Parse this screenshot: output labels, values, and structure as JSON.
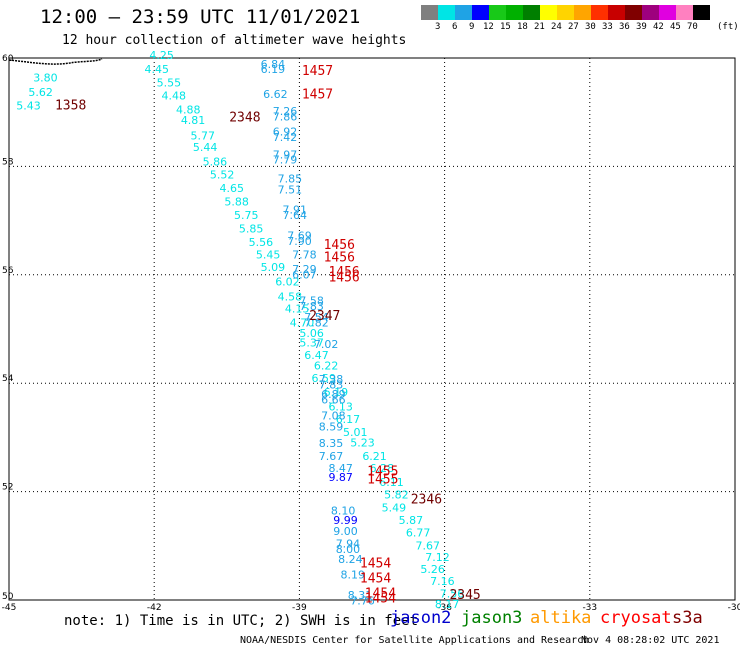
{
  "header": {
    "title": "12:00 — 23:59 UTC 11/01/2021",
    "subtitle": "12 hour collection of altimeter wave heights"
  },
  "colorbar": {
    "colors": [
      "#7f7f7f",
      "#00e5e5",
      "#1fa3e5",
      "#0000ff",
      "#18c918",
      "#00b000",
      "#007f00",
      "#ffff00",
      "#ffd400",
      "#ffa500",
      "#ff3000",
      "#c80000",
      "#800000",
      "#9e007e",
      "#e000e0",
      "#ff80c0",
      "#000000"
    ],
    "labels": [
      "3",
      "6",
      "9",
      "12",
      "15",
      "18",
      "21",
      "24",
      "27",
      "30",
      "33",
      "36",
      "39",
      "42",
      "45",
      "70"
    ],
    "unit": "(ft)"
  },
  "chart_data": {
    "type": "scatter",
    "title": "12:00 — 23:59 UTC 11/01/2021",
    "subtitle": "12 hour collection of altimeter wave heights",
    "xlim": [
      -45,
      -30
    ],
    "ylim": [
      50,
      60
    ],
    "x_ticks": [
      "-45",
      "-42",
      "-39",
      "-36",
      "-33",
      "-30"
    ],
    "y_ticks": [
      "50",
      "52",
      "54",
      "56",
      "58",
      "60"
    ],
    "swh_points": [
      {
        "lon": -42.1,
        "lat": 59.98,
        "text": "4.25",
        "color": "#00e5e5"
      },
      {
        "lon": -42.2,
        "lat": 59.72,
        "text": "4.45",
        "color": "#00e5e5"
      },
      {
        "lon": -41.95,
        "lat": 59.47,
        "text": "5.55",
        "color": "#00e5e5"
      },
      {
        "lon": -41.85,
        "lat": 59.23,
        "text": "4.48",
        "color": "#00e5e5"
      },
      {
        "lon": -41.55,
        "lat": 58.98,
        "text": "4.88",
        "color": "#00e5e5"
      },
      {
        "lon": -41.45,
        "lat": 58.78,
        "text": "4.81",
        "color": "#00e5e5"
      },
      {
        "lon": -41.25,
        "lat": 58.5,
        "text": "5.77",
        "color": "#00e5e5"
      },
      {
        "lon": -41.2,
        "lat": 58.28,
        "text": "5.44",
        "color": "#00e5e5"
      },
      {
        "lon": -41.0,
        "lat": 58.02,
        "text": "5.86",
        "color": "#00e5e5"
      },
      {
        "lon": -40.85,
        "lat": 57.78,
        "text": "5.52",
        "color": "#00e5e5"
      },
      {
        "lon": -40.65,
        "lat": 57.53,
        "text": "4.65",
        "color": "#00e5e5"
      },
      {
        "lon": -40.55,
        "lat": 57.28,
        "text": "5.88",
        "color": "#00e5e5"
      },
      {
        "lon": -40.35,
        "lat": 57.03,
        "text": "5.75",
        "color": "#00e5e5"
      },
      {
        "lon": -40.25,
        "lat": 56.78,
        "text": "5.85",
        "color": "#00e5e5"
      },
      {
        "lon": -40.05,
        "lat": 56.53,
        "text": "5.56",
        "color": "#00e5e5"
      },
      {
        "lon": -39.9,
        "lat": 56.3,
        "text": "5.45",
        "color": "#00e5e5"
      },
      {
        "lon": -39.8,
        "lat": 56.07,
        "text": "5.09",
        "color": "#00e5e5"
      },
      {
        "lon": -39.5,
        "lat": 55.8,
        "text": "6.02",
        "color": "#00e5e5"
      },
      {
        "lon": -39.45,
        "lat": 55.53,
        "text": "4.58",
        "color": "#00e5e5"
      },
      {
        "lon": -39.3,
        "lat": 55.3,
        "text": "4.15",
        "color": "#00e5e5"
      },
      {
        "lon": -39.2,
        "lat": 55.05,
        "text": "4.70",
        "color": "#00e5e5"
      },
      {
        "lon": -39.0,
        "lat": 54.85,
        "text": "5.06",
        "color": "#00e5e5"
      },
      {
        "lon": -39.0,
        "lat": 54.68,
        "text": "5.37",
        "color": "#00e5e5"
      },
      {
        "lon": -38.9,
        "lat": 54.45,
        "text": "6.47",
        "color": "#00e5e5"
      },
      {
        "lon": -38.7,
        "lat": 54.25,
        "text": "6.22",
        "color": "#00e5e5"
      },
      {
        "lon": -38.75,
        "lat": 54.02,
        "text": "6.59",
        "color": "#00e5e5"
      },
      {
        "lon": -38.5,
        "lat": 53.76,
        "text": "6.19",
        "color": "#00e5e5"
      },
      {
        "lon": -38.4,
        "lat": 53.5,
        "text": "6.13",
        "color": "#00e5e5"
      },
      {
        "lon": -38.25,
        "lat": 53.27,
        "text": "6.17",
        "color": "#00e5e5"
      },
      {
        "lon": -38.1,
        "lat": 53.03,
        "text": "5.01",
        "color": "#00e5e5"
      },
      {
        "lon": -37.95,
        "lat": 52.83,
        "text": "5.23",
        "color": "#00e5e5"
      },
      {
        "lon": -37.7,
        "lat": 52.58,
        "text": "6.21",
        "color": "#00e5e5"
      },
      {
        "lon": -37.55,
        "lat": 52.36,
        "text": "6.28",
        "color": "#00e5e5"
      },
      {
        "lon": -37.35,
        "lat": 52.1,
        "text": "6.11",
        "color": "#00e5e5"
      },
      {
        "lon": -37.25,
        "lat": 51.87,
        "text": "5.82",
        "color": "#00e5e5"
      },
      {
        "lon": -37.3,
        "lat": 51.63,
        "text": "5.49",
        "color": "#00e5e5"
      },
      {
        "lon": -36.95,
        "lat": 51.4,
        "text": "5.87",
        "color": "#00e5e5"
      },
      {
        "lon": -36.8,
        "lat": 51.17,
        "text": "6.77",
        "color": "#00e5e5"
      },
      {
        "lon": -36.6,
        "lat": 50.93,
        "text": "7.67",
        "color": "#00e5e5"
      },
      {
        "lon": -36.4,
        "lat": 50.72,
        "text": "7.12",
        "color": "#00e5e5"
      },
      {
        "lon": -36.5,
        "lat": 50.5,
        "text": "5.26",
        "color": "#00e5e5"
      },
      {
        "lon": -36.3,
        "lat": 50.28,
        "text": "7.16",
        "color": "#00e5e5"
      },
      {
        "lon": -36.1,
        "lat": 50.05,
        "text": "7.56",
        "color": "#00e5e5"
      },
      {
        "lon": -36.2,
        "lat": 49.85,
        "text": "8.17",
        "color": "#00e5e5"
      },
      {
        "lon": -39.8,
        "lat": 59.82,
        "text": "6.84",
        "color": "#1fa3e5"
      },
      {
        "lon": -39.8,
        "lat": 59.72,
        "text": "6.19",
        "color": "#1fa3e5"
      },
      {
        "lon": -39.75,
        "lat": 59.26,
        "text": "6.62",
        "color": "#1fa3e5"
      },
      {
        "lon": -39.55,
        "lat": 58.95,
        "text": "7.26",
        "color": "#1fa3e5"
      },
      {
        "lon": -39.55,
        "lat": 58.85,
        "text": "7.86",
        "color": "#1fa3e5"
      },
      {
        "lon": -39.55,
        "lat": 58.57,
        "text": "6.92",
        "color": "#1fa3e5"
      },
      {
        "lon": -39.55,
        "lat": 58.47,
        "text": "7.42",
        "color": "#1fa3e5"
      },
      {
        "lon": -39.55,
        "lat": 58.15,
        "text": "7.97",
        "color": "#1fa3e5"
      },
      {
        "lon": -39.55,
        "lat": 58.05,
        "text": "7.79",
        "color": "#1fa3e5"
      },
      {
        "lon": -39.45,
        "lat": 57.7,
        "text": "7.85",
        "color": "#1fa3e5"
      },
      {
        "lon": -39.45,
        "lat": 57.5,
        "text": "7.51",
        "color": "#1fa3e5"
      },
      {
        "lon": -39.35,
        "lat": 57.13,
        "text": "7.91",
        "color": "#1fa3e5"
      },
      {
        "lon": -39.35,
        "lat": 57.03,
        "text": "7.64",
        "color": "#1fa3e5"
      },
      {
        "lon": -39.25,
        "lat": 56.65,
        "text": "7.69",
        "color": "#1fa3e5"
      },
      {
        "lon": -39.25,
        "lat": 56.55,
        "text": "7.90",
        "color": "#1fa3e5"
      },
      {
        "lon": -39.15,
        "lat": 56.3,
        "text": "7.78",
        "color": "#1fa3e5"
      },
      {
        "lon": -39.15,
        "lat": 56.03,
        "text": "7.29",
        "color": "#1fa3e5"
      },
      {
        "lon": -39.15,
        "lat": 55.93,
        "text": "6.07",
        "color": "#1fa3e5"
      },
      {
        "lon": -39.0,
        "lat": 55.45,
        "text": "7.58",
        "color": "#1fa3e5"
      },
      {
        "lon": -39.0,
        "lat": 55.35,
        "text": "7.83",
        "color": "#1fa3e5"
      },
      {
        "lon": -38.9,
        "lat": 55.15,
        "text": "7.54",
        "color": "#1fa3e5"
      },
      {
        "lon": -38.9,
        "lat": 55.05,
        "text": "7.82",
        "color": "#1fa3e5"
      },
      {
        "lon": -38.7,
        "lat": 54.65,
        "text": "7.02",
        "color": "#1fa3e5"
      },
      {
        "lon": -38.6,
        "lat": 54.0,
        "text": "7.38",
        "color": "#1fa3e5"
      },
      {
        "lon": -38.6,
        "lat": 53.9,
        "text": "7.83",
        "color": "#1fa3e5"
      },
      {
        "lon": -38.55,
        "lat": 53.73,
        "text": "6.89",
        "color": "#1fa3e5"
      },
      {
        "lon": -38.55,
        "lat": 53.63,
        "text": "6.66",
        "color": "#1fa3e5"
      },
      {
        "lon": -38.55,
        "lat": 53.33,
        "text": "7.08",
        "color": "#1fa3e5"
      },
      {
        "lon": -38.6,
        "lat": 53.13,
        "text": "8.59",
        "color": "#1fa3e5"
      },
      {
        "lon": -38.6,
        "lat": 52.82,
        "text": "8.35",
        "color": "#1fa3e5"
      },
      {
        "lon": -38.6,
        "lat": 52.58,
        "text": "7.67",
        "color": "#1fa3e5"
      },
      {
        "lon": -38.4,
        "lat": 52.36,
        "text": "8.47",
        "color": "#1fa3e5"
      },
      {
        "lon": -38.35,
        "lat": 51.58,
        "text": "8.10",
        "color": "#1fa3e5"
      },
      {
        "lon": -38.3,
        "lat": 51.2,
        "text": "9.00",
        "color": "#1fa3e5"
      },
      {
        "lon": -38.25,
        "lat": 50.97,
        "text": "7.94",
        "color": "#1fa3e5"
      },
      {
        "lon": -38.25,
        "lat": 50.87,
        "text": "8.00",
        "color": "#1fa3e5"
      },
      {
        "lon": -38.2,
        "lat": 50.68,
        "text": "8.24",
        "color": "#1fa3e5"
      },
      {
        "lon": -38.15,
        "lat": 50.4,
        "text": "8.19",
        "color": "#1fa3e5"
      },
      {
        "lon": -38.0,
        "lat": 50.02,
        "text": "8.31",
        "color": "#1fa3e5"
      },
      {
        "lon": -37.95,
        "lat": 49.92,
        "text": "7.76",
        "color": "#1fa3e5"
      },
      {
        "lon": -38.4,
        "lat": 52.2,
        "text": "9.87",
        "color": "#0000ff"
      },
      {
        "lon": -38.3,
        "lat": 51.4,
        "text": "9.99",
        "color": "#0000ff"
      },
      {
        "lon": -44.5,
        "lat": 59.57,
        "text": "3.80",
        "color": "#00e5e5"
      },
      {
        "lon": -44.6,
        "lat": 59.3,
        "text": "5.62",
        "color": "#00e5e5"
      },
      {
        "lon": -44.85,
        "lat": 59.05,
        "text": "5.43",
        "color": "#00e5e5"
      }
    ],
    "time_labels": [
      {
        "lon": -38.95,
        "lat": 59.69,
        "text": "1457",
        "color": "#d00000"
      },
      {
        "lon": -38.95,
        "lat": 59.25,
        "text": "1457",
        "color": "#d00000"
      },
      {
        "lon": -44.05,
        "lat": 59.05,
        "text": "1358",
        "color": "#700000"
      },
      {
        "lon": -40.45,
        "lat": 58.83,
        "text": "2348",
        "color": "#700000"
      },
      {
        "lon": -38.5,
        "lat": 56.48,
        "text": "1456",
        "color": "#d00000"
      },
      {
        "lon": -38.5,
        "lat": 56.25,
        "text": "1456",
        "color": "#d00000"
      },
      {
        "lon": -38.4,
        "lat": 55.98,
        "text": "1456",
        "color": "#d00000"
      },
      {
        "lon": -38.4,
        "lat": 55.88,
        "text": "1456",
        "color": "#d00000"
      },
      {
        "lon": -38.8,
        "lat": 55.17,
        "text": "2347",
        "color": "#700000"
      },
      {
        "lon": -37.6,
        "lat": 52.3,
        "text": "1455",
        "color": "#d00000"
      },
      {
        "lon": -37.6,
        "lat": 52.15,
        "text": "1455",
        "color": "#d00000"
      },
      {
        "lon": -36.7,
        "lat": 51.78,
        "text": "2346",
        "color": "#700000"
      },
      {
        "lon": -37.75,
        "lat": 50.6,
        "text": "1454",
        "color": "#d00000"
      },
      {
        "lon": -37.75,
        "lat": 50.32,
        "text": "1454",
        "color": "#d00000"
      },
      {
        "lon": -37.65,
        "lat": 50.05,
        "text": "1454",
        "color": "#d00000"
      },
      {
        "lon": -37.65,
        "lat": 49.95,
        "text": "1454",
        "color": "#d00000"
      },
      {
        "lon": -35.9,
        "lat": 50.02,
        "text": "2345",
        "color": "#700000"
      }
    ]
  },
  "footer": {
    "note": "note: 1) Time is in UTC; 2) SWH is in feet",
    "satellites": [
      {
        "name": "jason2",
        "color": "#0000cc"
      },
      {
        "name": "jason3",
        "color": "#008000"
      },
      {
        "name": "altika",
        "color": "#ff9900"
      },
      {
        "name": "cryosat",
        "color": "#ff0000"
      },
      {
        "name": "s3a",
        "color": "#800000"
      }
    ],
    "credit": "NOAA/NESDIS Center for Satellite Applications and Research",
    "timestamp": "Nov  4 08:28:02 UTC 2021"
  }
}
